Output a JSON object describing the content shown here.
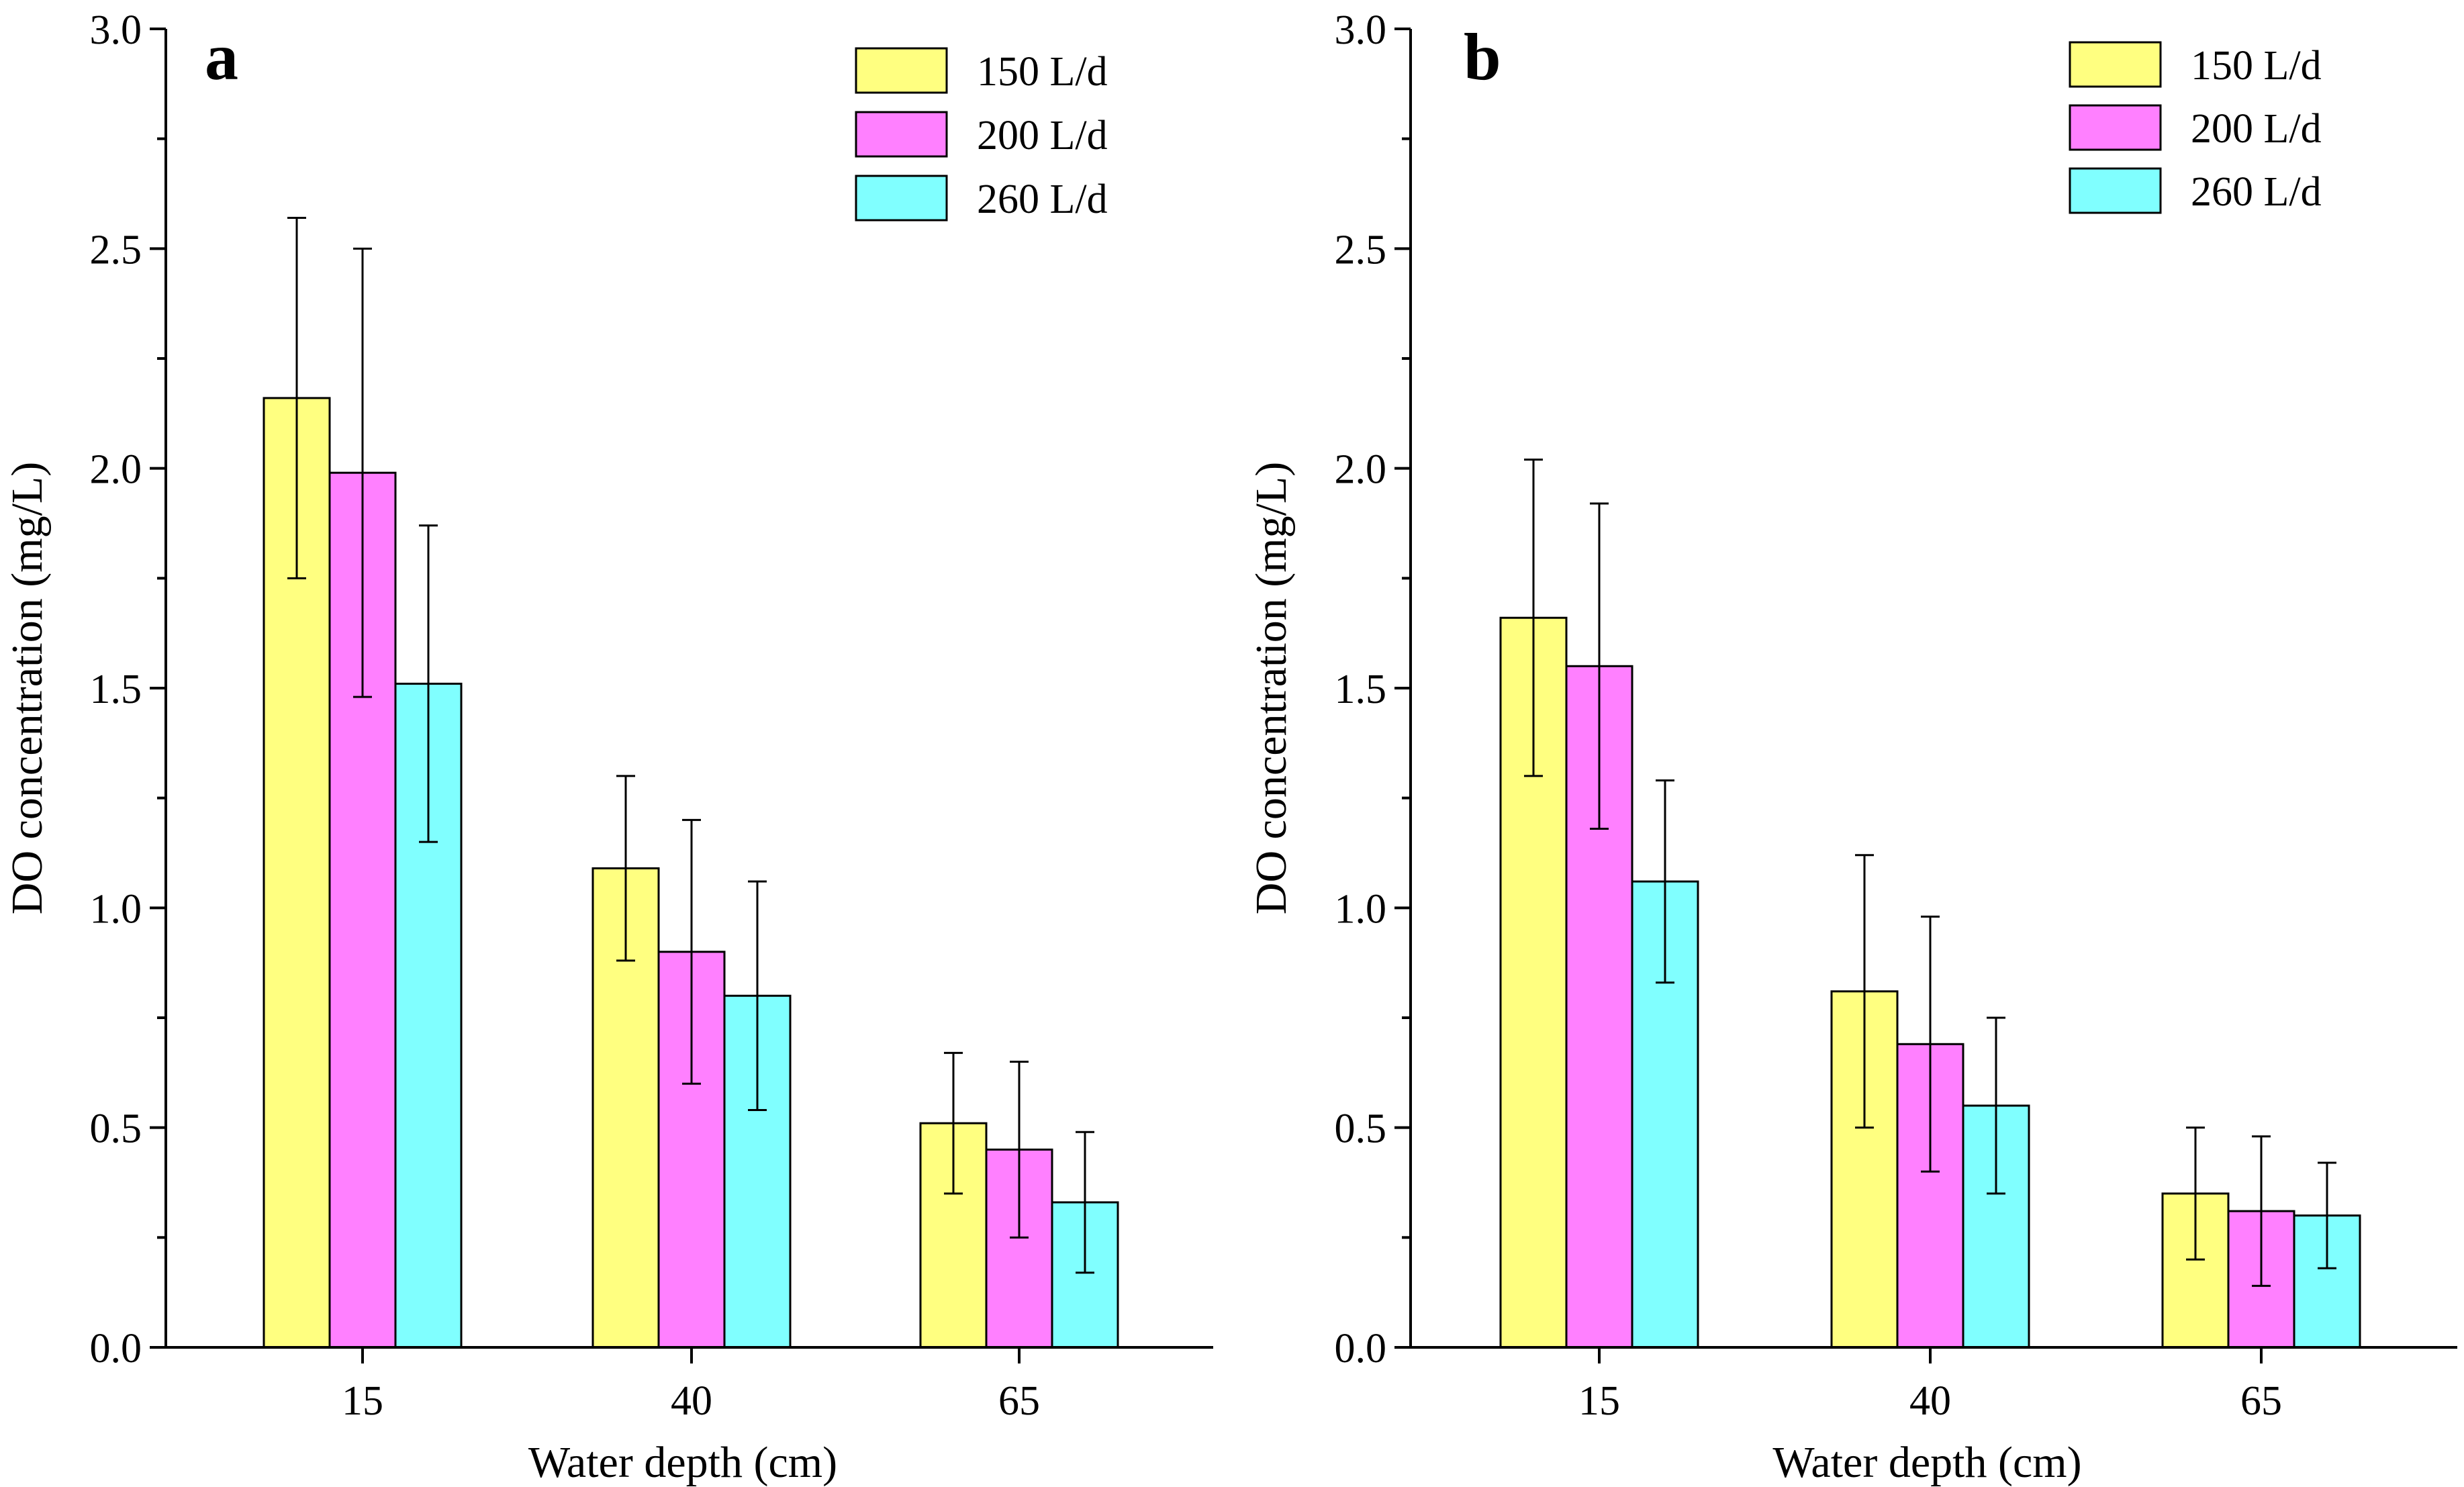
{
  "chart_data": [
    {
      "type": "bar",
      "panel_label": "a",
      "categories": [
        "15",
        "40",
        "65"
      ],
      "xlabel": "Water depth (cm)",
      "ylabel": "DO concentration (mg/L)",
      "ylim": [
        0,
        3.0
      ],
      "yticks": [
        "0.0",
        "0.5",
        "1.0",
        "1.5",
        "2.0",
        "2.5",
        "3.0"
      ],
      "grid": false,
      "legend_position": "top-right",
      "series": [
        {
          "name": "150 L/d",
          "color": "#FFFF80",
          "values": [
            2.16,
            1.09,
            0.51
          ],
          "errors": [
            0.41,
            0.21,
            0.16
          ]
        },
        {
          "name": "200 L/d",
          "color": "#FF80FF",
          "values": [
            1.99,
            0.9,
            0.45
          ],
          "errors": [
            0.51,
            0.3,
            0.2
          ]
        },
        {
          "name": "260 L/d",
          "color": "#80FFFF",
          "values": [
            1.51,
            0.8,
            0.33
          ],
          "errors": [
            0.36,
            0.26,
            0.16
          ]
        }
      ]
    },
    {
      "type": "bar",
      "panel_label": "b",
      "categories": [
        "15",
        "40",
        "65"
      ],
      "xlabel": "Water depth (cm)",
      "ylabel": "DO concentration (mg/L)",
      "ylim": [
        0,
        3.0
      ],
      "yticks": [
        "0.0",
        "0.5",
        "1.0",
        "1.5",
        "2.0",
        "2.5",
        "3.0"
      ],
      "grid": false,
      "legend_position": "top-right",
      "series": [
        {
          "name": "150 L/d",
          "color": "#FFFF80",
          "values": [
            1.66,
            0.81,
            0.35
          ],
          "errors": [
            0.36,
            0.31,
            0.15
          ]
        },
        {
          "name": "200 L/d",
          "color": "#FF80FF",
          "values": [
            1.55,
            0.69,
            0.31
          ],
          "errors": [
            0.37,
            0.29,
            0.17
          ]
        },
        {
          "name": "260 L/d",
          "color": "#80FFFF",
          "values": [
            1.06,
            0.55,
            0.3
          ],
          "errors": [
            0.23,
            0.2,
            0.12
          ]
        }
      ]
    }
  ]
}
